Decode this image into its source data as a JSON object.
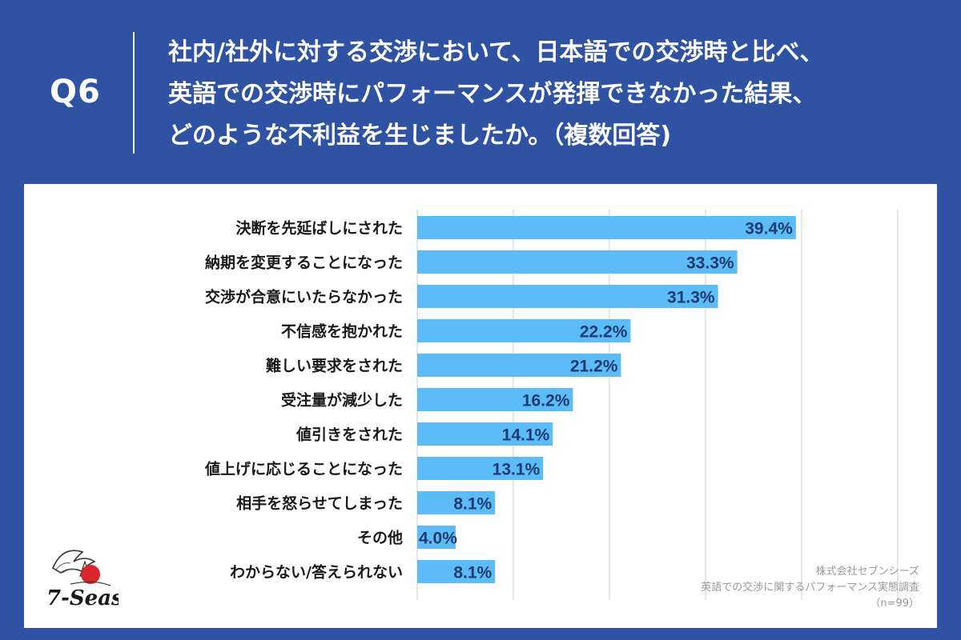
{
  "header": {
    "q_label": "Q6",
    "question_lines": [
      "社内/社外に対する交渉において、日本語での交渉時と比べ、",
      "英語での交渉時にパフォーマンスが発揮できなかった結果、",
      "どのような不利益を生じましたか。（複数回答)"
    ]
  },
  "colors": {
    "background": "#2f52a3",
    "bar": "#5bbcf8",
    "value_label": "#1f3a6e",
    "category_label": "#1a1a1a",
    "grid": "#cccccc"
  },
  "chart_data": {
    "type": "bar",
    "orientation": "horizontal",
    "categories": [
      "決断を先延ばしにされた",
      "納期を変更することになった",
      "交渉が合意にいたらなかった",
      "不信感を抱かれた",
      "難しい要求をされた",
      "受注量が減少した",
      "値引きをされた",
      "値上げに応じることになった",
      "相手を怒らせてしまった",
      "その他",
      "わからない/答えられない"
    ],
    "values": [
      39.4,
      33.3,
      31.3,
      22.2,
      21.2,
      16.2,
      14.1,
      13.1,
      8.1,
      4.0,
      8.1
    ],
    "value_labels": [
      "39.4%",
      "33.3%",
      "31.3%",
      "22.2%",
      "21.2%",
      "16.2%",
      "14.1%",
      "13.1%",
      "8.1%",
      "4.0%",
      "8.1%"
    ],
    "xlim": [
      0,
      50
    ],
    "grid": true
  },
  "source": {
    "company": "株式会社セブンシーズ",
    "survey": "英語での交渉に関するパフォーマンス実態調査",
    "sample": "（n=99）"
  },
  "logo": {
    "text": "7-Seas"
  }
}
